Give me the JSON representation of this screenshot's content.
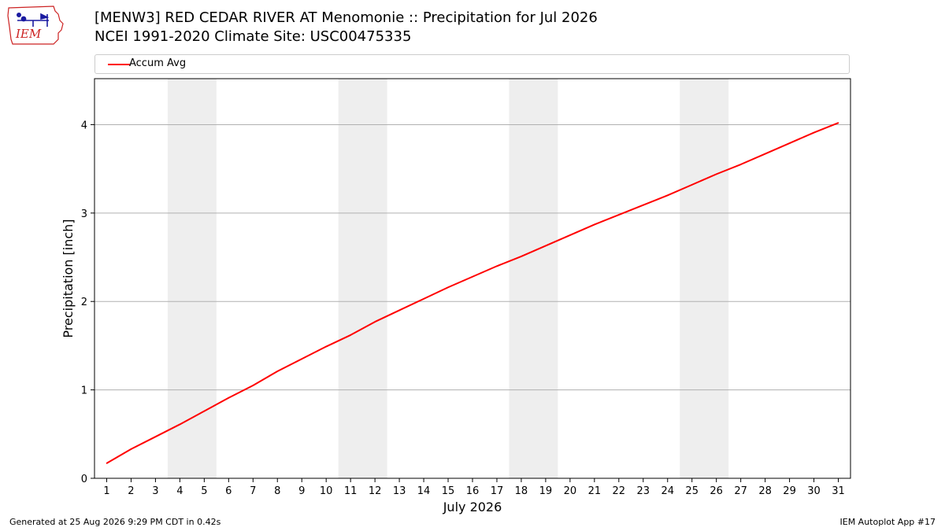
{
  "header": {
    "title_line1": "[MENW3] RED CEDAR RIVER  AT Menomonie :: Precipitation for Jul 2026",
    "title_line2": "NCEI 1991-2020 Climate Site: USC00475335",
    "logo_text": "IEM"
  },
  "footer": {
    "generated": "Generated at 25 Aug 2026 9:29 PM CDT in 0.42s",
    "app": "IEM Autoplot App #17"
  },
  "colors": {
    "series": "#ff0000",
    "weekend_band": "#eeeeee",
    "grid": "#b0b0b0",
    "logo": "#cc2222"
  },
  "chart_data": {
    "type": "line",
    "xlabel": "July 2026",
    "ylabel": "Precipitation [inch]",
    "xlim": [
      0.5,
      31.5
    ],
    "ylim": [
      0,
      4.52
    ],
    "x_ticks": [
      1,
      2,
      3,
      4,
      5,
      6,
      7,
      8,
      9,
      10,
      11,
      12,
      13,
      14,
      15,
      16,
      17,
      18,
      19,
      20,
      21,
      22,
      23,
      24,
      25,
      26,
      27,
      28,
      29,
      30,
      31
    ],
    "y_ticks": [
      0,
      1,
      2,
      3,
      4
    ],
    "grid": "horizontal",
    "legend_position": "top",
    "weekend_bands": [
      [
        3.5,
        5.5
      ],
      [
        10.5,
        12.5
      ],
      [
        17.5,
        19.5
      ],
      [
        24.5,
        26.5
      ]
    ],
    "series": [
      {
        "name": "Accum Avg",
        "x": [
          1,
          2,
          3,
          4,
          5,
          6,
          7,
          8,
          9,
          10,
          11,
          12,
          13,
          14,
          15,
          16,
          17,
          18,
          19,
          20,
          21,
          22,
          23,
          24,
          25,
          26,
          27,
          28,
          29,
          30,
          31
        ],
        "values": [
          0.17,
          0.33,
          0.47,
          0.61,
          0.76,
          0.91,
          1.05,
          1.21,
          1.35,
          1.49,
          1.62,
          1.77,
          1.9,
          2.03,
          2.16,
          2.28,
          2.4,
          2.51,
          2.63,
          2.75,
          2.87,
          2.98,
          3.09,
          3.2,
          3.32,
          3.44,
          3.55,
          3.67,
          3.79,
          3.91,
          4.02
        ]
      }
    ]
  }
}
